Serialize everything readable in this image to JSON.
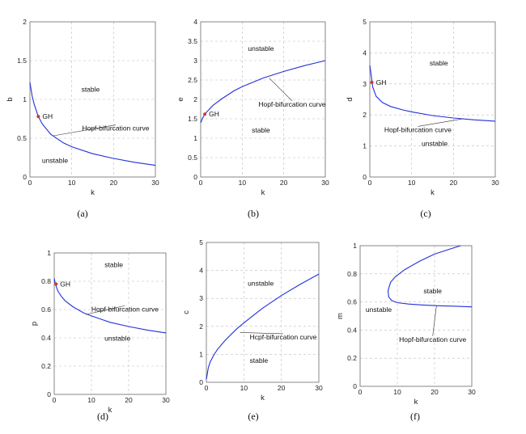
{
  "colors": {
    "curve": "#2230d8",
    "gh_point": "#d9342b",
    "grid": "#bdbdbd"
  },
  "chart_data": [
    {
      "id": "a",
      "type": "line",
      "caption": "(a)",
      "xlabel": "k",
      "ylabel": "b",
      "xlim": [
        0,
        30
      ],
      "ylim": [
        0,
        2
      ],
      "xticks": [
        0,
        10,
        20,
        30
      ],
      "yticks": [
        0,
        0.5,
        1,
        1.5,
        2
      ],
      "xtick_labels": [
        "0",
        "10",
        "20",
        "30"
      ],
      "ytick_labels": [
        "0",
        "0.5",
        "1",
        "1.5",
        "2"
      ],
      "series": [
        {
          "x": [
            0,
            0.5,
            1,
            2,
            3,
            5,
            8,
            10,
            15,
            20,
            25,
            30
          ],
          "y": [
            1.22,
            1.05,
            0.94,
            0.78,
            0.68,
            0.55,
            0.44,
            0.39,
            0.3,
            0.24,
            0.19,
            0.15
          ]
        }
      ],
      "regions": [
        {
          "text": "stable",
          "x": 14.5,
          "y": 1.1
        },
        {
          "text": "unstable",
          "x": 6,
          "y": 0.18
        }
      ],
      "gh": {
        "text": "GH",
        "x": 2,
        "y": 0.78
      },
      "annotation": {
        "text": "Hopf-bifurcation curve",
        "text_x": 20.5,
        "text_y": 0.64,
        "point_x": 5.5,
        "point_y": 0.53
      }
    },
    {
      "id": "b",
      "type": "line",
      "caption": "(b)",
      "xlabel": "k",
      "ylabel": "e",
      "xlim": [
        0,
        30
      ],
      "ylim": [
        0,
        4
      ],
      "xticks": [
        0,
        10,
        20,
        30
      ],
      "yticks": [
        0,
        0.5,
        1,
        1.5,
        2,
        2.5,
        3,
        3.5,
        4
      ],
      "xtick_labels": [
        "0",
        "10",
        "20",
        "30"
      ],
      "ytick_labels": [
        "0",
        "0.5",
        "1",
        "1.5",
        "2",
        "2.5",
        "3",
        "3.5",
        "4"
      ],
      "series": [
        {
          "x": [
            0,
            0.5,
            1,
            2,
            3,
            5,
            8,
            10,
            15,
            20,
            25,
            30
          ],
          "y": [
            1.4,
            1.53,
            1.62,
            1.74,
            1.85,
            2.01,
            2.22,
            2.33,
            2.55,
            2.72,
            2.87,
            3.0
          ]
        }
      ],
      "regions": [
        {
          "text": "unstable",
          "x": 14.5,
          "y": 3.25
        },
        {
          "text": "stable",
          "x": 14.5,
          "y": 1.15
        }
      ],
      "gh": {
        "text": "GH",
        "x": 1,
        "y": 1.62
      },
      "annotation": {
        "text": "Hopf-bifurcation curve",
        "text_x": 22,
        "text_y": 1.9,
        "point_x": 16.5,
        "point_y": 2.55
      }
    },
    {
      "id": "c",
      "type": "line",
      "caption": "(c)",
      "xlabel": "k",
      "ylabel": "d",
      "xlim": [
        0,
        30
      ],
      "ylim": [
        0,
        5
      ],
      "xticks": [
        0,
        10,
        20,
        30
      ],
      "yticks": [
        0,
        1,
        2,
        3,
        4,
        5
      ],
      "xtick_labels": [
        "0",
        "10",
        "20",
        "30"
      ],
      "ytick_labels": [
        "0",
        "1",
        "2",
        "3",
        "4",
        "5"
      ],
      "series": [
        {
          "x": [
            0,
            0.3,
            0.7,
            1.5,
            3,
            5,
            8,
            10,
            15,
            20,
            25,
            30
          ],
          "y": [
            3.6,
            3.3,
            2.9,
            2.6,
            2.4,
            2.27,
            2.16,
            2.1,
            1.98,
            1.9,
            1.84,
            1.8
          ]
        }
      ],
      "regions": [
        {
          "text": "stable",
          "x": 16.5,
          "y": 3.6
        },
        {
          "text": "unstable",
          "x": 15.5,
          "y": 1.0
        }
      ],
      "gh": {
        "text": "GH",
        "x": 0.5,
        "y": 3.05
      },
      "annotation": {
        "text": "Hopf-bifurcation curve",
        "text_x": 11.5,
        "text_y": 1.55,
        "point_x": 22.5,
        "point_y": 1.88
      }
    },
    {
      "id": "d",
      "type": "line",
      "caption": "(d)",
      "xlabel": "k",
      "ylabel": "p",
      "xlim": [
        0,
        30
      ],
      "ylim": [
        0,
        1
      ],
      "xticks": [
        0,
        10,
        20,
        30
      ],
      "yticks": [
        0,
        0.2,
        0.4,
        0.6,
        0.8,
        1
      ],
      "xtick_labels": [
        "0",
        "10",
        "20",
        "30"
      ],
      "ytick_labels": [
        "0",
        "0.2",
        "0.4",
        "0.6",
        "0.8",
        "1"
      ],
      "series": [
        {
          "x": [
            0,
            0.3,
            1,
            2,
            3,
            5,
            8,
            10,
            15,
            20,
            25,
            30
          ],
          "y": [
            0.82,
            0.78,
            0.73,
            0.69,
            0.66,
            0.62,
            0.575,
            0.555,
            0.51,
            0.48,
            0.455,
            0.435
          ]
        }
      ],
      "regions": [
        {
          "text": "stable",
          "x": 16,
          "y": 0.9
        },
        {
          "text": "unstable",
          "x": 17,
          "y": 0.38
        }
      ],
      "gh": {
        "text": "GH",
        "x": 0.5,
        "y": 0.78
      },
      "annotation": {
        "text": "Hopf-bifurcation curve",
        "text_x": 19,
        "text_y": 0.61,
        "point_x": 8.5,
        "point_y": 0.565
      }
    },
    {
      "id": "e",
      "type": "line",
      "caption": "(e)",
      "xlabel": "k",
      "ylabel": "c",
      "xlim": [
        0,
        30
      ],
      "ylim": [
        0,
        5
      ],
      "xticks": [
        0,
        10,
        20,
        30
      ],
      "yticks": [
        0,
        1,
        2,
        3,
        4,
        5
      ],
      "xtick_labels": [
        "0",
        "10",
        "20",
        "30"
      ],
      "ytick_labels": [
        "0",
        "1",
        "2",
        "3",
        "4",
        "5"
      ],
      "series": [
        {
          "x": [
            0,
            0.5,
            1,
            2,
            3,
            5,
            8,
            10,
            15,
            20,
            25,
            30
          ],
          "y": [
            0.1,
            0.5,
            0.72,
            0.98,
            1.18,
            1.5,
            1.9,
            2.12,
            2.65,
            3.1,
            3.5,
            3.87
          ]
        }
      ],
      "regions": [
        {
          "text": "unstable",
          "x": 14.5,
          "y": 3.45
        },
        {
          "text": "stable",
          "x": 14,
          "y": 0.7
        }
      ],
      "annotation": {
        "text": "Hcpf-bifurcation curve",
        "text_x": 20.5,
        "text_y": 1.65,
        "point_x": 9,
        "point_y": 1.78
      }
    },
    {
      "id": "f",
      "type": "line",
      "caption": "(f)",
      "xlabel": "k",
      "ylabel": "m",
      "xlim": [
        0,
        30
      ],
      "ylim": [
        0,
        1
      ],
      "xticks": [
        0,
        10,
        20,
        30
      ],
      "yticks": [
        0,
        0.2,
        0.4,
        0.6,
        0.8,
        1
      ],
      "xtick_labels": [
        "0",
        "10",
        "20",
        "30"
      ],
      "ytick_labels": [
        "0",
        "0.2",
        "0.4",
        "0.6",
        "0.8",
        "1"
      ],
      "series": [
        {
          "x": [
            27,
            24,
            20,
            16,
            12,
            9.5,
            8.2,
            7.5,
            7.7,
            8.5,
            10,
            13,
            17,
            21,
            25,
            30
          ],
          "y": [
            1.0,
            0.975,
            0.94,
            0.89,
            0.83,
            0.78,
            0.74,
            0.68,
            0.635,
            0.61,
            0.595,
            0.585,
            0.578,
            0.573,
            0.57,
            0.565
          ]
        }
      ],
      "regions": [
        {
          "text": "stable",
          "x": 19.5,
          "y": 0.66
        },
        {
          "text": "unstable",
          "x": 5,
          "y": 0.53
        }
      ],
      "annotation": {
        "text": "Hopf-bifurcation curve",
        "text_x": 19.5,
        "text_y": 0.34,
        "point_x": 20.5,
        "point_y": 0.57
      }
    }
  ]
}
